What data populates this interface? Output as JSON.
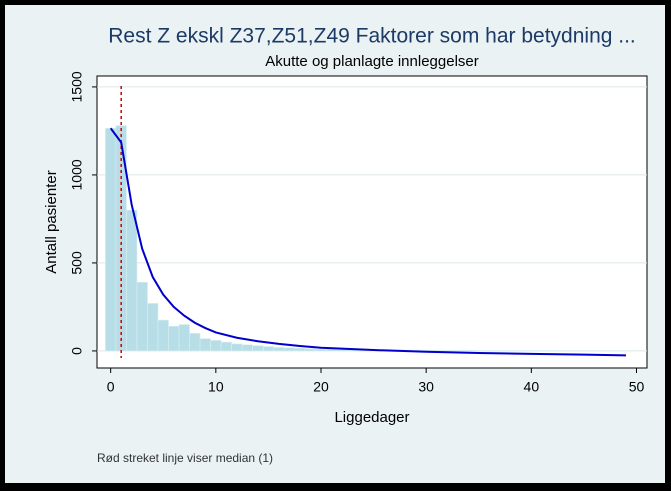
{
  "chart_data": {
    "type": "histogram",
    "title": "Rest Z ekskl Z37,Z51,Z49 Faktorer som har betydning ...",
    "subtitle": "Akutte og planlagte innleggelser",
    "x_label": "Liggedager",
    "y_label": "Antall pasienter",
    "note": "Rød streket linje viser median (1)",
    "bins": [
      -0.5,
      0.5,
      1.5,
      2.5,
      3.5,
      4.5,
      5.5,
      6.5,
      7.5,
      8.5,
      9.5,
      10.5,
      11.5,
      12.5,
      13.5,
      14.5,
      15.5,
      16.5,
      17.5,
      18.5,
      19.5,
      20.5,
      21.5,
      22.5,
      23.5,
      24.5,
      25.5,
      26.5,
      27.5,
      28.5,
      29.5,
      30.5,
      31.5,
      32.5,
      33.5,
      34.5,
      35.5,
      36.5,
      37.5,
      38.5,
      39.5,
      40.5,
      41.5,
      42.5,
      43.5,
      44.5,
      45.5,
      46.5,
      47.5,
      48.5,
      49.5
    ],
    "values": [
      1265,
      1280,
      800,
      390,
      270,
      175,
      140,
      150,
      100,
      70,
      60,
      50,
      40,
      35,
      30,
      25,
      20,
      18,
      15,
      12,
      10,
      9,
      8,
      7,
      6,
      6,
      5,
      5,
      4,
      4,
      4,
      3,
      3,
      3,
      3,
      2,
      2,
      2,
      2,
      2,
      2,
      2,
      2,
      1,
      1,
      1,
      1,
      1,
      1,
      1
    ],
    "color": "#b7dde6",
    "line": {
      "x": [
        0,
        1,
        2,
        3,
        4,
        5,
        6,
        7,
        8,
        9,
        10,
        12,
        14,
        16,
        18,
        20,
        25,
        30,
        35,
        40,
        45,
        49
      ],
      "values": [
        1265,
        1185,
        830,
        580,
        420,
        320,
        250,
        200,
        160,
        130,
        105,
        75,
        55,
        40,
        28,
        18,
        5,
        -5,
        -12,
        -17,
        -21,
        -25
      ],
      "color": "#0000cc"
    },
    "median": 1,
    "median_color": "#cc0000",
    "xlim": [
      -1.3,
      51
    ],
    "ylim": [
      -97,
      1562
    ],
    "xticks": [
      0,
      10,
      20,
      30,
      40,
      50
    ],
    "yticks": [
      0,
      500,
      1000,
      1500
    ],
    "grid": true
  }
}
